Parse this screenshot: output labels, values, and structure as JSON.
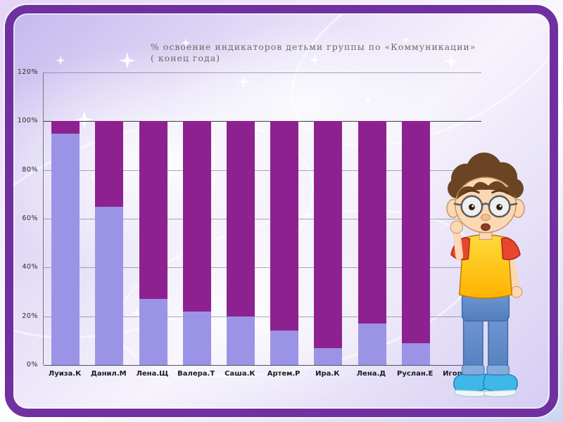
{
  "slide": {
    "frame_color": "#7030a0"
  },
  "chart": {
    "title_line1": "% освоение индикаторов детьми группы  по  «Коммуникации»",
    "title_line2": "( конец года)"
  },
  "chart_data": {
    "type": "bar",
    "stacked": true,
    "title": "% освоение индикаторов детьми группы по «Коммуникации» ( конец года)",
    "categories": [
      "Луиза.К",
      "Данил.М",
      "Лена.Щ",
      "Валера.Т",
      "Саша.К",
      "Артем.Р",
      "Ира.К",
      "Лена.Д",
      "Руслан.Е",
      "Игорь.А"
    ],
    "series": [
      {
        "key": "light",
        "label": "нижний сегмент (светло-сиреневый)",
        "color": "#9b94e6",
        "values": [
          95,
          65,
          27,
          22,
          20,
          14,
          7,
          17,
          9,
          0
        ]
      },
      {
        "key": "dark",
        "label": "верхний сегмент (фиолетовый)",
        "color": "#8e2190",
        "values": [
          5,
          35,
          73,
          78,
          80,
          86,
          93,
          83,
          91,
          0
        ]
      }
    ],
    "xlabel": "",
    "ylabel": "",
    "ylim": [
      0,
      120
    ],
    "ytick_values": [
      0,
      20,
      40,
      60,
      80,
      100,
      120
    ],
    "ytick_labels": [
      "0%",
      "20%",
      "40%",
      "60%",
      "80%",
      "100%",
      "120%"
    ],
    "grid": true,
    "legend": false
  }
}
